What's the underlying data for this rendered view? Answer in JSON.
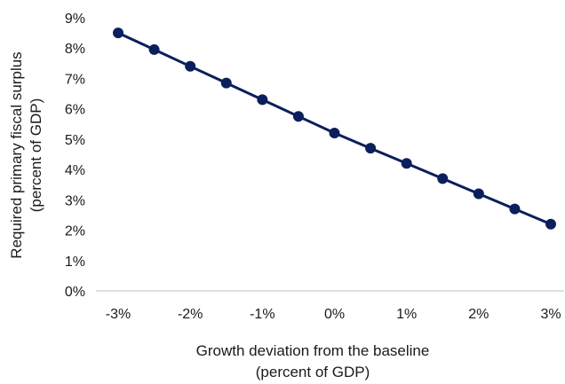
{
  "chart_data": {
    "type": "line",
    "title": "",
    "xlabel_lines": [
      "Growth deviation from the baseline",
      "(percent of GDP)"
    ],
    "ylabel_lines": [
      "Required primary fiscal surplus",
      "(percent of GDP)"
    ],
    "x": [
      -3,
      -2.5,
      -2,
      -1.5,
      -1,
      -0.5,
      0,
      0.5,
      1,
      1.5,
      2,
      2.5,
      3
    ],
    "series": [
      {
        "values": [
          8.5,
          7.95,
          7.4,
          6.85,
          6.3,
          5.75,
          5.2,
          4.7,
          4.2,
          3.7,
          3.2,
          2.7,
          2.2
        ],
        "color": "#0b1f5c"
      }
    ],
    "x_ticks": [
      -3,
      -2,
      -1,
      0,
      1,
      2,
      3
    ],
    "x_tick_labels": [
      "-3%",
      "-2%",
      "-1%",
      "0%",
      "1%",
      "2%",
      "3%"
    ],
    "y_ticks": [
      0,
      1,
      2,
      3,
      4,
      5,
      6,
      7,
      8,
      9
    ],
    "y_tick_labels": [
      "0%",
      "1%",
      "2%",
      "3%",
      "4%",
      "5%",
      "6%",
      "7%",
      "8%",
      "9%"
    ],
    "xlim": [
      -3,
      3
    ],
    "ylim": [
      0,
      9
    ],
    "grid": false,
    "legend": "none"
  }
}
